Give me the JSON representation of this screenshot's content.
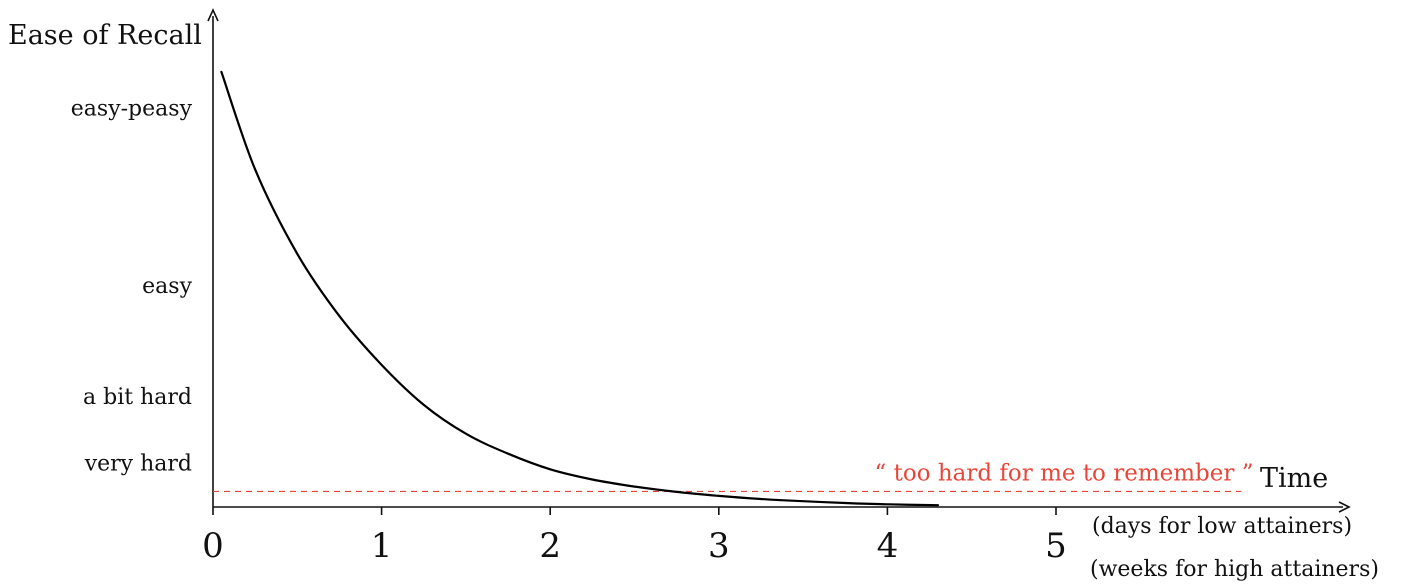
{
  "chart_data": {
    "type": "line",
    "title": "",
    "ylabel": "Ease of Recall",
    "xlabel": "Time",
    "xlabel_notes": [
      "(days for low attainers)",
      "(weeks for high attainers)"
    ],
    "xlim": [
      0,
      5.4
    ],
    "ylim": [
      0,
      1.1
    ],
    "x_ticks": [
      0,
      1,
      2,
      3,
      4,
      5
    ],
    "x_tick_labels": [
      "0",
      "1",
      "2",
      "3",
      "4",
      "5"
    ],
    "y_ticks": [
      {
        "value": 0.1,
        "label": "very hard"
      },
      {
        "value": 0.25,
        "label": "a bit hard"
      },
      {
        "value": 0.5,
        "label": "easy"
      },
      {
        "value": 0.9,
        "label": "easy-peasy"
      }
    ],
    "grid": false,
    "series": [
      {
        "x": [
          0.05,
          0.25,
          0.5,
          0.75,
          1.0,
          1.25,
          1.5,
          1.75,
          2.0,
          2.25,
          2.5,
          2.75,
          3.0,
          3.25,
          3.5,
          3.75,
          4.0,
          4.3
        ],
        "y": [
          0.98,
          0.76,
          0.57,
          0.43,
          0.32,
          0.23,
          0.165,
          0.12,
          0.085,
          0.062,
          0.046,
          0.034,
          0.025,
          0.018,
          0.013,
          0.009,
          0.006,
          0.004
        ],
        "color": "#000000"
      }
    ],
    "threshold": {
      "value": 0.035,
      "x_end": 6.1,
      "label": "“ too hard for me to remember ”",
      "color": "#e8463a",
      "style": "dashed"
    }
  }
}
